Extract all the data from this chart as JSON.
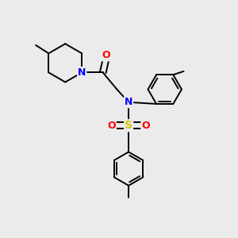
{
  "bg_color": "#ebebeb",
  "atom_colors": {
    "N": "#0000ff",
    "O": "#ff0000",
    "S": "#cccc00",
    "C": "#000000"
  },
  "bond_color": "#000000",
  "bond_width": 1.4,
  "figsize": [
    3.0,
    3.0
  ],
  "dpi": 100
}
